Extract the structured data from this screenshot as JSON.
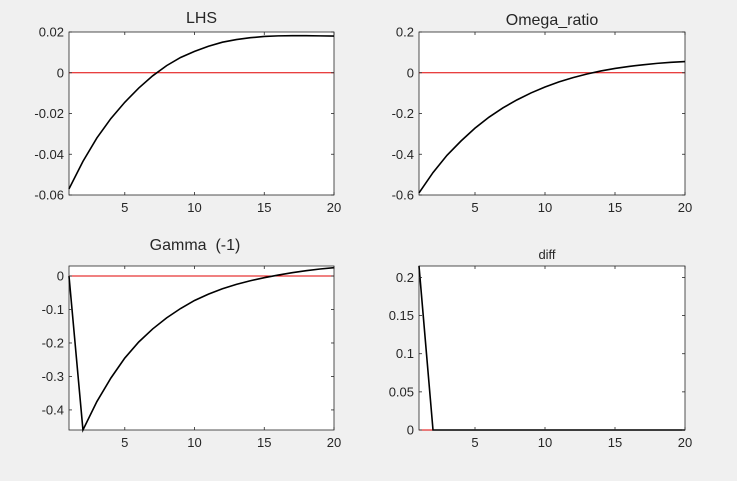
{
  "chart_data": [
    {
      "type": "line",
      "title": "LHS",
      "xlim": [
        1,
        20
      ],
      "ylim": [
        -0.06,
        0.02
      ],
      "xticks": [
        5,
        10,
        15,
        20
      ],
      "xtick_labels": [
        "5",
        "10",
        "15",
        "20"
      ],
      "yticks": [
        0.02,
        0,
        -0.02,
        -0.04,
        -0.06
      ],
      "ytick_labels": [
        "0.02",
        "0",
        "-0.02",
        "-0.04",
        "-0.06"
      ],
      "reference_line": 0,
      "x": [
        1,
        2,
        3,
        4,
        5,
        6,
        7,
        8,
        9,
        10,
        11,
        12,
        13,
        14,
        15,
        16,
        17,
        18,
        19,
        20
      ],
      "values": [
        -0.057,
        -0.0435,
        -0.032,
        -0.0225,
        -0.0145,
        -0.0075,
        -0.0015,
        0.0035,
        0.0075,
        0.0105,
        0.013,
        0.015,
        0.0163,
        0.0172,
        0.0178,
        0.0181,
        0.0182,
        0.0182,
        0.0181,
        0.018
      ]
    },
    {
      "type": "line",
      "title": "Omega_ratio",
      "xlim": [
        1,
        20
      ],
      "ylim": [
        -0.6,
        0.2
      ],
      "xticks": [
        5,
        10,
        15,
        20
      ],
      "xtick_labels": [
        "5",
        "10",
        "15",
        "20"
      ],
      "yticks": [
        0.2,
        0,
        -0.2,
        -0.4,
        -0.6
      ],
      "ytick_labels": [
        "0.2",
        "0",
        "-0.2",
        "-0.4",
        "-0.6"
      ],
      "reference_line": 0,
      "x": [
        1,
        2,
        3,
        4,
        5,
        6,
        7,
        8,
        9,
        10,
        11,
        12,
        13,
        14,
        15,
        16,
        17,
        18,
        19,
        20
      ],
      "values": [
        -0.59,
        -0.49,
        -0.405,
        -0.335,
        -0.272,
        -0.218,
        -0.172,
        -0.133,
        -0.099,
        -0.07,
        -0.045,
        -0.024,
        -0.006,
        0.009,
        0.021,
        0.031,
        0.039,
        0.046,
        0.051,
        0.055
      ]
    },
    {
      "type": "line",
      "title": "Gamma  (-1)",
      "xlim": [
        1,
        20
      ],
      "ylim": [
        -0.46,
        0.03
      ],
      "xticks": [
        5,
        10,
        15,
        20
      ],
      "xtick_labels": [
        "5",
        "10",
        "15",
        "20"
      ],
      "yticks": [
        0,
        -0.1,
        -0.2,
        -0.3,
        -0.4
      ],
      "ytick_labels": [
        "0",
        "-0.1",
        "-0.2",
        "-0.3",
        "-0.4"
      ],
      "reference_line": 0,
      "x": [
        1,
        2,
        3,
        4,
        5,
        6,
        7,
        8,
        9,
        10,
        11,
        12,
        13,
        14,
        15,
        16,
        17,
        18,
        19,
        20
      ],
      "values": [
        0,
        -0.46,
        -0.375,
        -0.305,
        -0.245,
        -0.197,
        -0.158,
        -0.125,
        -0.097,
        -0.073,
        -0.054,
        -0.038,
        -0.025,
        -0.014,
        -0.005,
        0.003,
        0.01,
        0.016,
        0.021,
        0.025
      ]
    },
    {
      "type": "line",
      "title": "diff",
      "xlim": [
        1,
        20
      ],
      "ylim": [
        0,
        0.215
      ],
      "xticks": [
        5,
        10,
        15,
        20
      ],
      "xtick_labels": [
        "5",
        "10",
        "15",
        "20"
      ],
      "yticks": [
        0.2,
        0.15,
        0.1,
        0.05,
        0
      ],
      "ytick_labels": [
        "0.2",
        "0.15",
        "0.1",
        "0.05",
        "0"
      ],
      "reference_line": 0,
      "x": [
        1,
        2,
        3,
        4,
        5,
        6,
        7,
        8,
        9,
        10,
        11,
        12,
        13,
        14,
        15,
        16,
        17,
        18,
        19,
        20
      ],
      "values": [
        0.215,
        0,
        0,
        0,
        0,
        0,
        0,
        0,
        0,
        0,
        0,
        0,
        0,
        0,
        0,
        0,
        0,
        0,
        0,
        0
      ]
    }
  ],
  "colors": {
    "series": "#000000",
    "reference": "#e00000",
    "axes": "#262626",
    "plot_bg": "#ffffff",
    "figure_bg": "#f0f0f0"
  }
}
